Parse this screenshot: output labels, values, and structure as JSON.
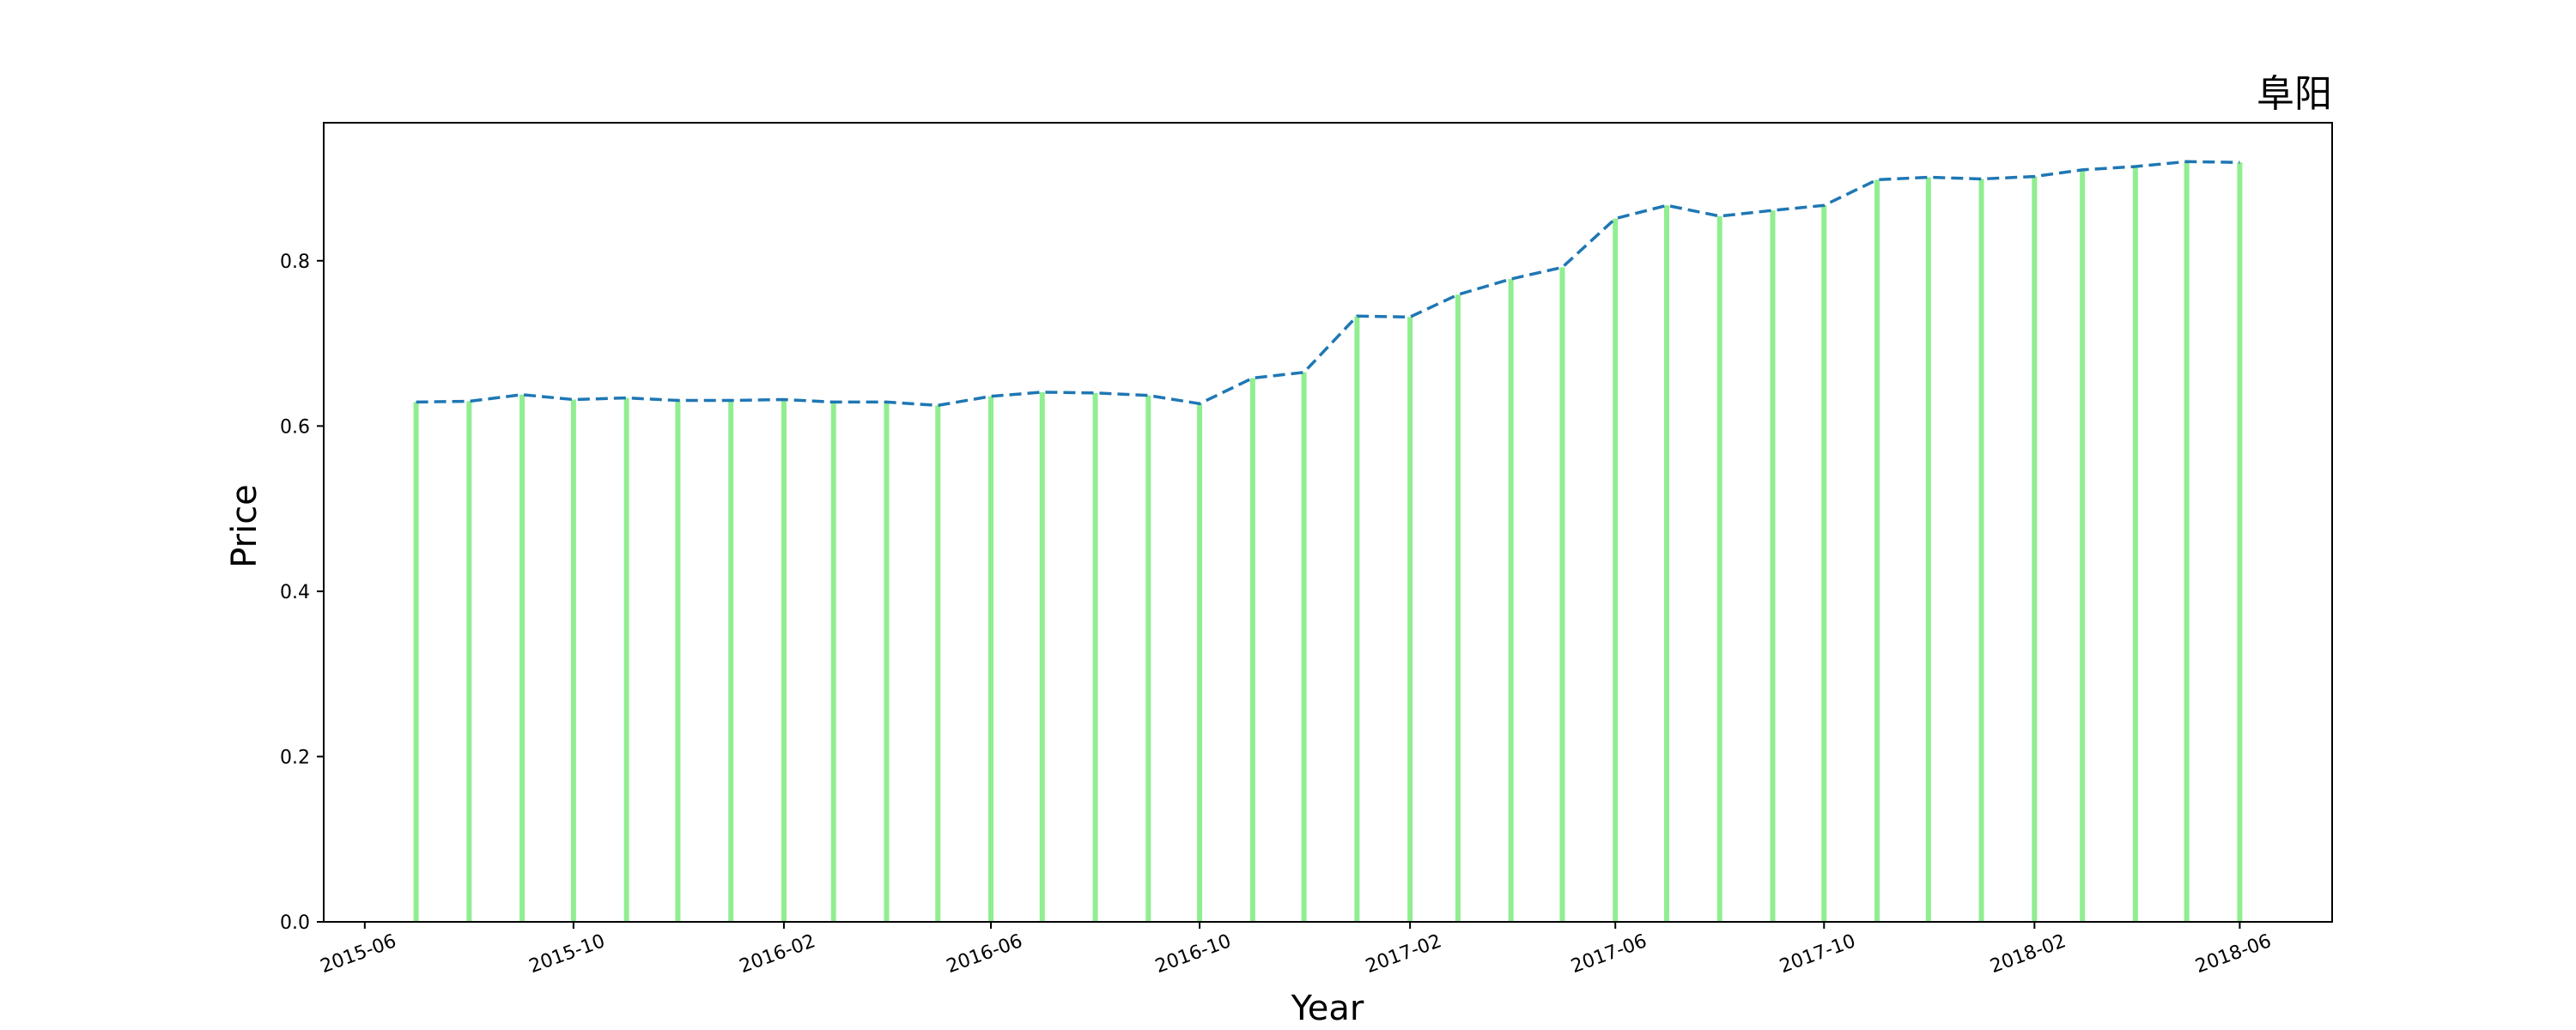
{
  "chart_data": {
    "type": "bar",
    "title": "阜阳",
    "xlabel": "Year",
    "ylabel": "Price",
    "x_ticks": [
      "2015-06",
      "2015-10",
      "2016-02",
      "2016-06",
      "2016-10",
      "2017-02",
      "2017-06",
      "2017-10",
      "2018-02",
      "2018-06"
    ],
    "y_ticks": [
      "0.0",
      "0.2",
      "0.4",
      "0.6",
      "0.8"
    ],
    "ylim": [
      0,
      0.967
    ],
    "xlim": [
      "2015-05-08",
      "2018-07-25"
    ],
    "grid": false,
    "x": [
      "2015-07",
      "2015-08",
      "2015-09",
      "2015-10",
      "2015-11",
      "2015-12",
      "2016-01",
      "2016-02",
      "2016-03",
      "2016-04",
      "2016-05",
      "2016-06",
      "2016-07",
      "2016-08",
      "2016-09",
      "2016-10",
      "2016-11",
      "2016-12",
      "2017-01",
      "2017-02",
      "2017-03",
      "2017-04",
      "2017-05",
      "2017-06",
      "2017-07",
      "2017-08",
      "2017-09",
      "2017-10",
      "2017-11",
      "2017-12",
      "2018-01",
      "2018-02",
      "2018-03",
      "2018-04",
      "2018-05",
      "2018-06"
    ],
    "values": [
      0.629,
      0.63,
      0.638,
      0.632,
      0.634,
      0.631,
      0.631,
      0.632,
      0.629,
      0.629,
      0.625,
      0.636,
      0.641,
      0.64,
      0.637,
      0.627,
      0.658,
      0.665,
      0.733,
      0.732,
      0.759,
      0.778,
      0.792,
      0.851,
      0.867,
      0.854,
      0.861,
      0.867,
      0.898,
      0.901,
      0.899,
      0.902,
      0.91,
      0.914,
      0.92,
      0.919
    ],
    "series": [
      {
        "style": "bar",
        "color": "#90ee90"
      },
      {
        "style": "dashed-line",
        "color": "#1f77b4"
      }
    ]
  }
}
